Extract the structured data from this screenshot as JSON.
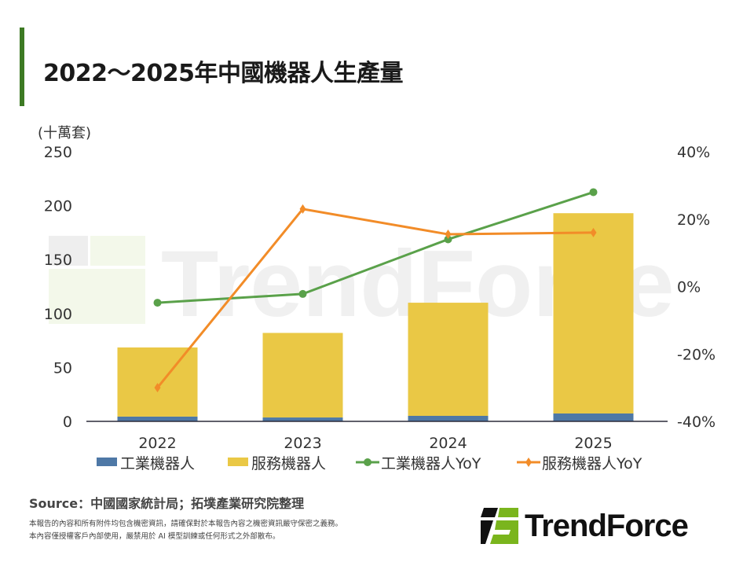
{
  "title": "2022～2025年中國機器人生產量",
  "source": "Source：中國國家統計局；拓墣產業研究院整理",
  "disclaimer": [
    "本報告的內容和所有附件均包含機密資訊，請確保對於本報告內容之機密資訊嚴守保密之義務。",
    "本內容僅授權客戶內部使用，嚴禁用於 AI 模型訓練或任何形式之外部散布。"
  ],
  "logo": "TrendForce",
  "watermark": "TrendForce",
  "colors": {
    "industrial": "#4e78a6",
    "service": "#eac845",
    "industrial_yoy": "#5aa14a",
    "service_yoy": "#f28c28",
    "accent": "#3d7a24"
  },
  "chart_data": {
    "type": "bar+line",
    "title": "2022～2025年中國機器人生產量",
    "ylabel": "(十萬套)",
    "categories": [
      "2022",
      "2023",
      "2024",
      "2025"
    ],
    "ylim": [
      0,
      250
    ],
    "yticks": [
      "0",
      "50",
      "100",
      "150",
      "200",
      "250"
    ],
    "y2lim": [
      -40,
      40
    ],
    "y2ticks": [
      "-40%",
      "-20%",
      "0%",
      "20%",
      "40%"
    ],
    "stacked": true,
    "legend_position": "bottom",
    "grid": false,
    "series": [
      {
        "name": "工業機器人",
        "type": "bar",
        "axis": "left",
        "values": [
          4.4,
          3.6,
          5.1,
          7.3
        ]
      },
      {
        "name": "服務機器人",
        "type": "bar",
        "axis": "left",
        "values": [
          64.1,
          78.4,
          104.9,
          185.7
        ]
      },
      {
        "name": "工業機器人YoY",
        "type": "line",
        "marker": "circle",
        "axis": "right",
        "values": [
          -4.8,
          -2.2,
          14.0,
          28.0
        ]
      },
      {
        "name": "服務機器人YoY",
        "type": "line",
        "marker": "diamond",
        "axis": "right",
        "values": [
          -30.0,
          23.0,
          15.5,
          16.0
        ]
      }
    ]
  }
}
